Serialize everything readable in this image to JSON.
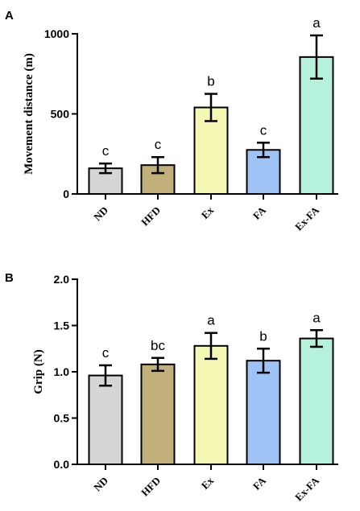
{
  "chart_data": [
    {
      "type": "bar",
      "panel": "A",
      "categories": [
        "ND",
        "HFD",
        "Ex",
        "FA",
        "Ex-FA"
      ],
      "values": [
        160,
        180,
        540,
        275,
        855
      ],
      "errors": [
        30,
        50,
        85,
        45,
        135
      ],
      "significance": [
        "c",
        "c",
        "b",
        "c",
        "a"
      ],
      "colors": [
        "#d6d6d6",
        "#c2b07a",
        "#f4f8b4",
        "#9fc3f5",
        "#b6f1dc"
      ],
      "ylabel": "Movement distance (m)",
      "ylim": [
        0,
        1000
      ],
      "yticks": [
        0,
        500,
        1000
      ],
      "yticklabels": [
        "0",
        "500",
        "1000"
      ]
    },
    {
      "type": "bar",
      "panel": "B",
      "categories": [
        "ND",
        "HFD",
        "Ex",
        "FA",
        "Ex-FA"
      ],
      "values": [
        0.96,
        1.08,
        1.28,
        1.12,
        1.36
      ],
      "errors": [
        0.11,
        0.07,
        0.14,
        0.13,
        0.09
      ],
      "significance": [
        "c",
        "bc",
        "a",
        "b",
        "a"
      ],
      "colors": [
        "#d6d6d6",
        "#c2b07a",
        "#f4f8b4",
        "#9fc3f5",
        "#b6f1dc"
      ],
      "ylabel": "Grip (N)",
      "ylim": [
        0,
        2.0
      ],
      "yticks": [
        0,
        0.5,
        1.0,
        1.5,
        2.0
      ],
      "yticklabels": [
        "0.0",
        "0.5",
        "1.0",
        "1.5",
        "2.0"
      ]
    }
  ]
}
